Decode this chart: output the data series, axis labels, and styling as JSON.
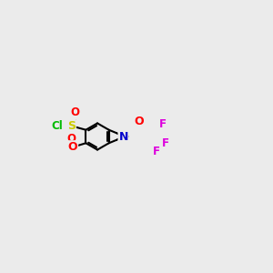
{
  "bg_color": "#ebebeb",
  "bond_color": "#000000",
  "bond_width": 1.5,
  "atom_colors": {
    "O": "#ff0000",
    "N": "#0000cc",
    "S": "#cccc00",
    "Cl": "#00bb00",
    "F": "#dd00dd",
    "C": "#000000"
  },
  "font_size": 9
}
